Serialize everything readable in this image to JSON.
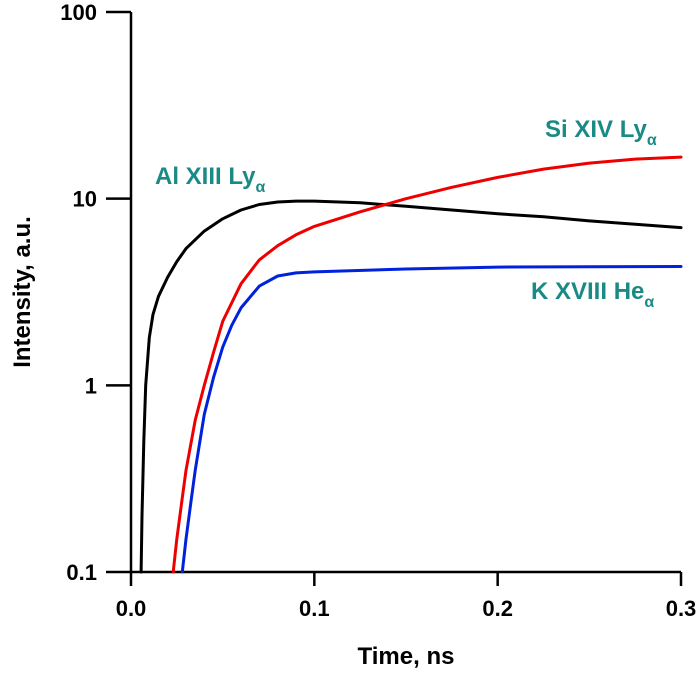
{
  "chart_data": {
    "type": "line",
    "title": "",
    "xlabel": "Time, ns",
    "ylabel": "Intensity, a.u.",
    "xlim": [
      0.0,
      0.3
    ],
    "ylim": [
      0.1,
      100
    ],
    "yscale": "log",
    "grid": false,
    "legend": "none",
    "x_ticks": [
      {
        "value": 0.0,
        "label": "0.0"
      },
      {
        "value": 0.1,
        "label": "0.1"
      },
      {
        "value": 0.2,
        "label": "0.2"
      },
      {
        "value": 0.3,
        "label": "0.3"
      }
    ],
    "y_ticks": [
      {
        "value": 0.1,
        "label": "0.1"
      },
      {
        "value": 1,
        "label": "1"
      },
      {
        "value": 10,
        "label": "10"
      },
      {
        "value": 100,
        "label": "100"
      }
    ],
    "series": [
      {
        "name_main": "Al XIII Ly",
        "name_sub": "α",
        "color": "#000000",
        "x": [
          0.0055,
          0.006,
          0.007,
          0.008,
          0.01,
          0.012,
          0.015,
          0.02,
          0.025,
          0.03,
          0.04,
          0.05,
          0.06,
          0.07,
          0.08,
          0.09,
          0.1,
          0.125,
          0.15,
          0.175,
          0.2,
          0.225,
          0.25,
          0.275,
          0.3
        ],
        "y": [
          0.1,
          0.2,
          0.5,
          1.0,
          1.8,
          2.4,
          3.0,
          3.8,
          4.6,
          5.4,
          6.7,
          7.8,
          8.7,
          9.3,
          9.6,
          9.7,
          9.7,
          9.5,
          9.1,
          8.7,
          8.3,
          8.0,
          7.6,
          7.3,
          7.0
        ]
      },
      {
        "name_main": "Si XIV Ly",
        "name_sub": "α",
        "color": "#ee0000",
        "x": [
          0.023,
          0.025,
          0.028,
          0.03,
          0.035,
          0.04,
          0.045,
          0.05,
          0.06,
          0.07,
          0.08,
          0.09,
          0.1,
          0.125,
          0.15,
          0.175,
          0.2,
          0.225,
          0.25,
          0.275,
          0.3
        ],
        "y": [
          0.1,
          0.15,
          0.25,
          0.35,
          0.65,
          1.0,
          1.5,
          2.2,
          3.5,
          4.7,
          5.6,
          6.4,
          7.1,
          8.5,
          10.0,
          11.5,
          13.0,
          14.4,
          15.5,
          16.3,
          16.7
        ]
      },
      {
        "name_main": "K XVIII He",
        "name_sub": "α",
        "color": "#0022dd",
        "x": [
          0.028,
          0.03,
          0.033,
          0.035,
          0.04,
          0.045,
          0.05,
          0.055,
          0.06,
          0.07,
          0.08,
          0.09,
          0.1,
          0.15,
          0.2,
          0.25,
          0.3
        ],
        "y": [
          0.1,
          0.15,
          0.25,
          0.35,
          0.7,
          1.1,
          1.6,
          2.1,
          2.6,
          3.4,
          3.85,
          4.0,
          4.05,
          4.2,
          4.3,
          4.32,
          4.33
        ]
      }
    ]
  }
}
